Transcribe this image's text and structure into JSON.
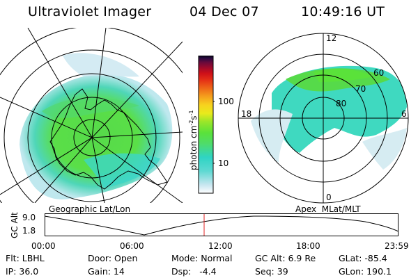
{
  "header": {
    "title": "Ultraviolet Imager",
    "date": "04 Dec 07",
    "time": "10:49:16 UT"
  },
  "colorbar": {
    "unit": "photon cm",
    "unit_exp1": "-2",
    "unit_mid": "s",
    "unit_exp2": "-1",
    "ticks": [
      "100",
      "10"
    ],
    "colors": [
      "#ffffff",
      "#c8e6f0",
      "#5fd9d2",
      "#2fd4c4",
      "#4fdc6a",
      "#5ae23a",
      "#9be629",
      "#e8ea1c",
      "#f7d31e",
      "#f5a21d",
      "#ee6a18",
      "#e53216",
      "#cf1018",
      "#a20a2a",
      "#6a0a3c",
      "#2a0a40",
      "#050515"
    ]
  },
  "left_map": {
    "label": "Geographic Lat/Lon"
  },
  "right_map": {
    "label": "Apex  MLat/MLT",
    "mlt_labels": {
      "top": "12",
      "left": "18",
      "right": "6",
      "bottom": "0"
    },
    "lat_labels": [
      "60",
      "70",
      "80"
    ]
  },
  "timeline": {
    "axis_label": "GC Alt",
    "y_ticks": [
      "9.0",
      "1.8"
    ],
    "x_ticks": [
      "00:00",
      "06:00",
      "12:00",
      "18:00",
      "23:59"
    ],
    "marker_hour": 10.82
  },
  "footer": {
    "flt": "Flt: LBHL",
    "ip": "IP: 36.0",
    "door": "Door: Open",
    "gain": "Gain: 14",
    "mode": "Mode: Normal",
    "dsp": "Dsp:   -4.4",
    "gcalt": "GC Alt: 6.9 Re",
    "seq": "Seq: 39",
    "glat": "GLat: -85.4",
    "glon": "GLon: 190.1"
  }
}
